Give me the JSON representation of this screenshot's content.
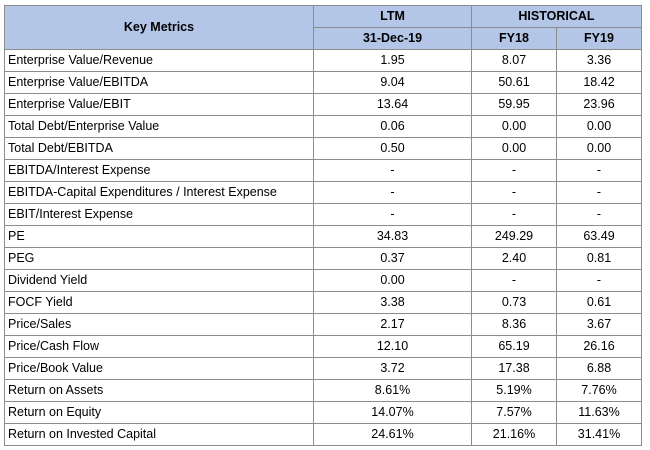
{
  "header": {
    "title": "Key Metrics",
    "group_ltm": "LTM",
    "group_historical": "HISTORICAL",
    "col_ltm": "31-Dec-19",
    "col_fy18": "FY18",
    "col_fy19": "FY19"
  },
  "header_color": "#b4c6e7",
  "rows": [
    {
      "label": "Enterprise Value/Revenue",
      "ltm": "1.95",
      "fy18": "8.07",
      "fy19": "3.36"
    },
    {
      "label": "Enterprise Value/EBITDA",
      "ltm": "9.04",
      "fy18": "50.61",
      "fy19": "18.42"
    },
    {
      "label": "Enterprise Value/EBIT",
      "ltm": "13.64",
      "fy18": "59.95",
      "fy19": "23.96"
    },
    {
      "label": "Total Debt/Enterprise Value",
      "ltm": "0.06",
      "fy18": "0.00",
      "fy19": "0.00"
    },
    {
      "label": "Total Debt/EBITDA",
      "ltm": "0.50",
      "fy18": "0.00",
      "fy19": "0.00"
    },
    {
      "label": "EBITDA/Interest Expense",
      "ltm": "-",
      "fy18": "-",
      "fy19": "-"
    },
    {
      "label": "EBITDA-Capital Expenditures / Interest Expense",
      "ltm": "-",
      "fy18": "-",
      "fy19": "-"
    },
    {
      "label": "EBIT/Interest Expense",
      "ltm": "-",
      "fy18": "-",
      "fy19": "-"
    },
    {
      "label": "PE",
      "ltm": "34.83",
      "fy18": "249.29",
      "fy19": "63.49"
    },
    {
      "label": "PEG",
      "ltm": "0.37",
      "fy18": "2.40",
      "fy19": "0.81"
    },
    {
      "label": "Dividend Yield",
      "ltm": "0.00",
      "fy18": "-",
      "fy19": "-"
    },
    {
      "label": "FOCF Yield",
      "ltm": "3.38",
      "fy18": "0.73",
      "fy19": "0.61"
    },
    {
      "label": "Price/Sales",
      "ltm": "2.17",
      "fy18": "8.36",
      "fy19": "3.67"
    },
    {
      "label": "Price/Cash Flow",
      "ltm": "12.10",
      "fy18": "65.19",
      "fy19": "26.16"
    },
    {
      "label": "Price/Book Value",
      "ltm": "3.72",
      "fy18": "17.38",
      "fy19": "6.88"
    },
    {
      "label": "Return on Assets",
      "ltm": "8.61%",
      "fy18": "5.19%",
      "fy19": "7.76%"
    },
    {
      "label": "Return on Equity",
      "ltm": "14.07%",
      "fy18": "7.57%",
      "fy19": "11.63%"
    },
    {
      "label": "Return on Invested Capital",
      "ltm": "24.61%",
      "fy18": "21.16%",
      "fy19": "31.41%"
    }
  ]
}
